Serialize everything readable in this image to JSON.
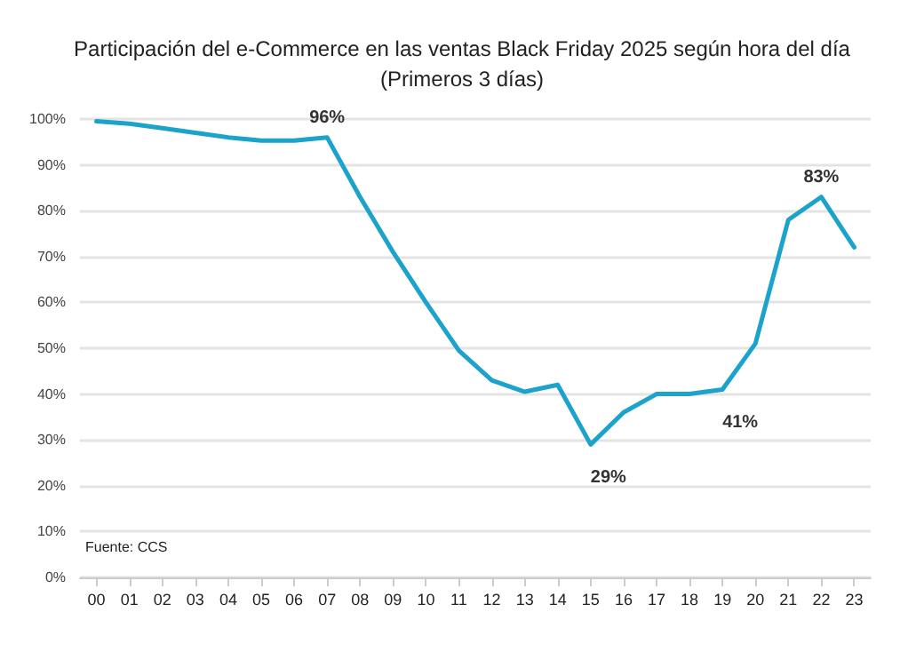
{
  "chart_data": {
    "type": "line",
    "title": "Participación del e-Commerce en las ventas Black Friday 2025 según hora del día\n(Primeros 3 días)",
    "categories": [
      "00",
      "01",
      "02",
      "03",
      "04",
      "05",
      "06",
      "07",
      "08",
      "09",
      "10",
      "11",
      "12",
      "13",
      "14",
      "15",
      "16",
      "17",
      "18",
      "19",
      "20",
      "21",
      "22",
      "23"
    ],
    "series": [
      {
        "color": "#1ba3cc",
        "values": [
          99.5,
          99,
          98,
          97,
          96,
          95.3,
          95.3,
          96,
          83,
          71,
          60,
          49.5,
          43,
          40.5,
          42,
          29,
          36,
          40,
          40,
          41,
          51,
          78,
          83,
          72
        ],
        "value_labels": [
          null,
          null,
          null,
          null,
          null,
          null,
          null,
          "96%",
          null,
          null,
          null,
          null,
          null,
          null,
          null,
          "29%",
          null,
          null,
          null,
          "41%",
          null,
          null,
          "83%",
          null
        ]
      }
    ],
    "ylim": [
      0,
      100
    ],
    "yticks": [
      {
        "value": 0,
        "label": "0%"
      },
      {
        "value": 10,
        "label": "10%"
      },
      {
        "value": 20,
        "label": "20%"
      },
      {
        "value": 30,
        "label": "30%"
      },
      {
        "value": 40,
        "label": "40%"
      },
      {
        "value": 50,
        "label": "50%"
      },
      {
        "value": 60,
        "label": "60%"
      },
      {
        "value": 70,
        "label": "70%"
      },
      {
        "value": 80,
        "label": "80%"
      },
      {
        "value": 90,
        "label": "90%"
      },
      {
        "value": 100,
        "label": "100%"
      }
    ],
    "grid": "y",
    "marker": "none",
    "line_style": "solid",
    "annotations": [
      "Fuente: CCS"
    ]
  }
}
